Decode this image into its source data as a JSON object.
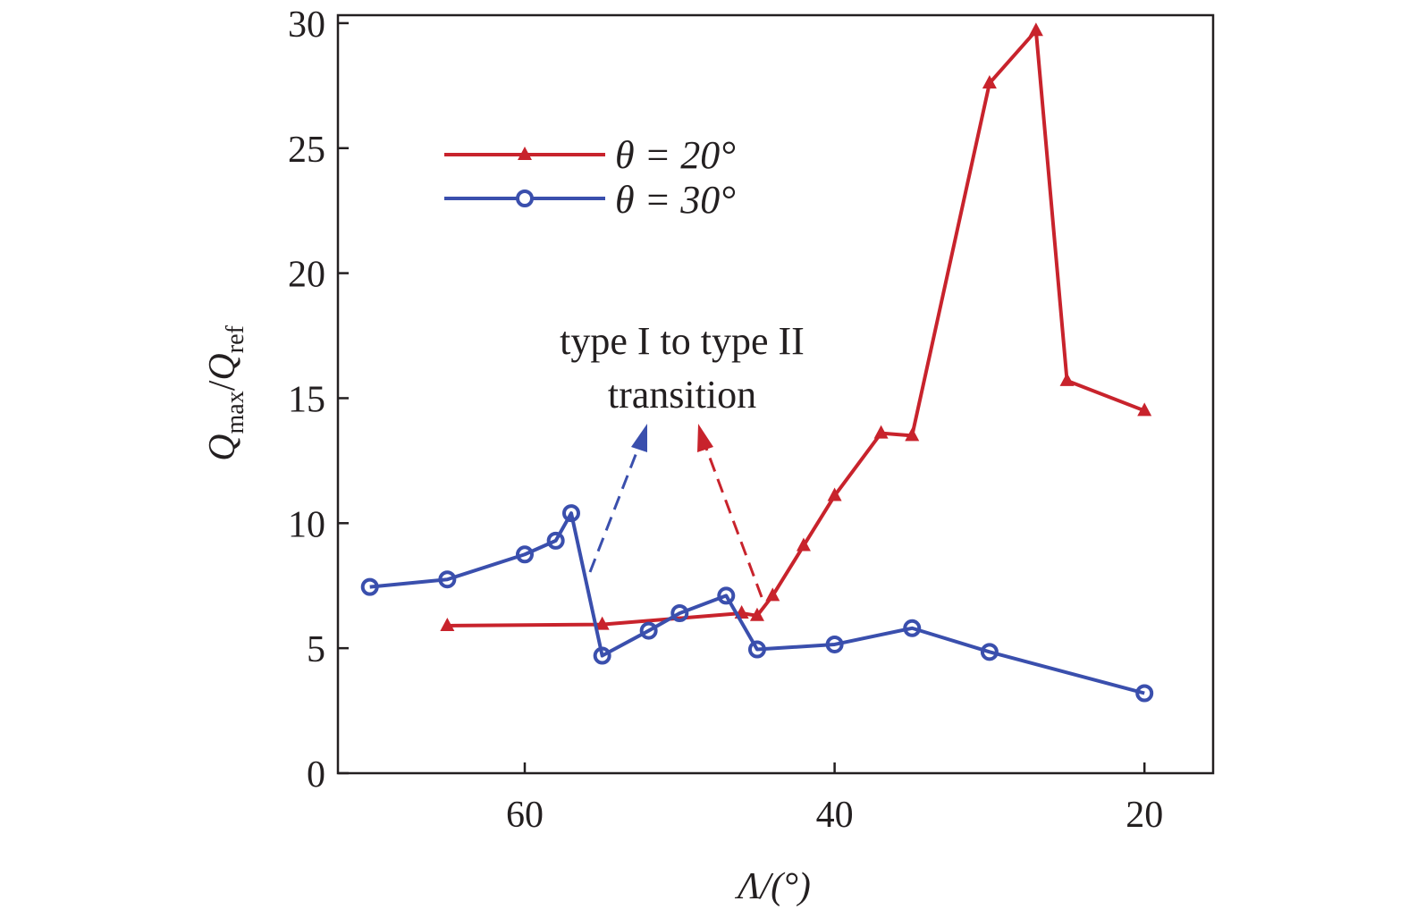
{
  "chart_data": {
    "type": "line",
    "xlabel": "Λ/(°)",
    "ylabel_main": "Q",
    "ylabel_sub1": "max",
    "ylabel_sub2": "ref",
    "xlim": [
      72,
      15.5
    ],
    "ylim": [
      0,
      30
    ],
    "x_reversed": true,
    "xticks": [
      60,
      40,
      20
    ],
    "yticks": [
      0,
      5,
      10,
      15,
      20,
      25,
      30
    ],
    "grid": false,
    "legend_position": "upper-left",
    "series": [
      {
        "name": "θ = 20°",
        "color": "#c8232c",
        "marker": "triangle",
        "x": [
          65,
          55,
          46,
          45,
          44,
          42,
          40,
          37,
          35,
          30,
          27,
          25,
          20
        ],
        "y": [
          5.9,
          5.95,
          6.4,
          6.3,
          7.1,
          9.1,
          11.1,
          13.6,
          13.5,
          27.6,
          29.7,
          15.7,
          14.5
        ]
      },
      {
        "name": "θ = 30°",
        "color": "#3a4fad",
        "marker": "circle",
        "x": [
          70,
          65,
          60,
          58,
          57,
          55,
          52,
          50,
          47,
          45,
          40,
          35,
          30,
          20
        ],
        "y": [
          7.45,
          7.75,
          8.75,
          9.3,
          10.4,
          4.7,
          5.7,
          6.4,
          7.1,
          4.95,
          5.15,
          5.8,
          4.85,
          3.2
        ]
      }
    ],
    "annotations": [
      {
        "line1": "type I to type II",
        "line2": "transition"
      }
    ]
  }
}
